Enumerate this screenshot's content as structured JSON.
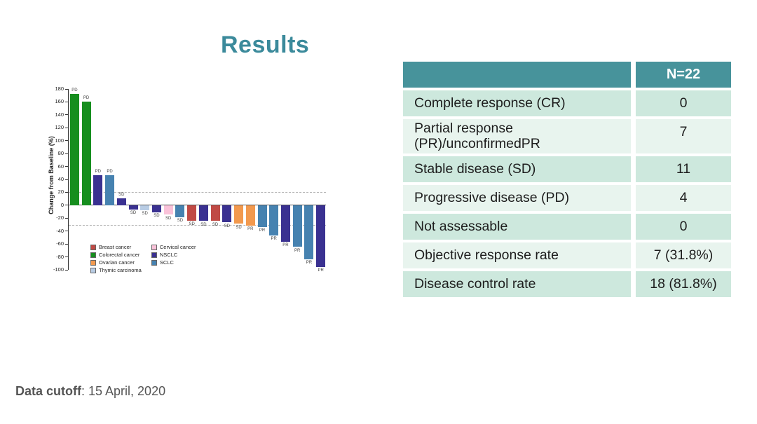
{
  "slide": {
    "title": "Results"
  },
  "footer": {
    "label": "Data cutoff",
    "value": ": 15 April, 2020"
  },
  "table": {
    "header": {
      "label": "",
      "value": "N=22"
    },
    "rows": [
      {
        "label": "Complete response (CR)",
        "value": "0"
      },
      {
        "label": "Partial response (PR)/unconfirmedPR",
        "value": "7"
      },
      {
        "label": "Stable disease (SD)",
        "value": "11"
      },
      {
        "label": "Progressive disease (PD)",
        "value": "4"
      },
      {
        "label": "Not assessable",
        "value": "0"
      },
      {
        "label": "Objective response rate",
        "value": "7 (31.8%)"
      },
      {
        "label": "Disease control rate",
        "value": "18 (81.8%)"
      }
    ],
    "colors": {
      "header": "#47939b",
      "row_dark": "#cde8dd",
      "row_light": "#e8f4ee"
    }
  },
  "chart_data": {
    "type": "bar",
    "title": "",
    "ylabel": "Change from Baseline (%)",
    "ylim": [
      -100,
      180
    ],
    "yticks": [
      180,
      160,
      140,
      120,
      100,
      80,
      60,
      40,
      20,
      0,
      -20,
      -40,
      -60,
      -80,
      -100
    ],
    "reference_lines": [
      20,
      -30
    ],
    "bars": [
      {
        "value": 172,
        "response": "PD",
        "cancer": "Colorectal cancer"
      },
      {
        "value": 161,
        "response": "PD",
        "cancer": "Colorectal cancer"
      },
      {
        "value": 47,
        "response": "PD",
        "cancer": "NSCLC"
      },
      {
        "value": 46,
        "response": "PD",
        "cancer": "SCLC"
      },
      {
        "value": 11,
        "response": "SD",
        "cancer": "NSCLC"
      },
      {
        "value": -6,
        "response": "SD",
        "cancer": "NSCLC"
      },
      {
        "value": -7,
        "response": "SD",
        "cancer": "Thymic carcinoma"
      },
      {
        "value": -10,
        "response": "SD",
        "cancer": "NSCLC"
      },
      {
        "value": -14,
        "response": "SD",
        "cancer": "Cervical cancer"
      },
      {
        "value": -18,
        "response": "SD",
        "cancer": "SCLC"
      },
      {
        "value": -23,
        "response": "SD",
        "cancer": "Breast cancer"
      },
      {
        "value": -24,
        "response": "SD",
        "cancer": "NSCLC"
      },
      {
        "value": -24,
        "response": "SD",
        "cancer": "Breast cancer"
      },
      {
        "value": -26,
        "response": "SD",
        "cancer": "NSCLC"
      },
      {
        "value": -28,
        "response": "SD",
        "cancer": "Ovarian cancer"
      },
      {
        "value": -31,
        "response": "PR",
        "cancer": "Ovarian cancer"
      },
      {
        "value": -33,
        "response": "PR",
        "cancer": "SCLC"
      },
      {
        "value": -46,
        "response": "PR",
        "cancer": "SCLC"
      },
      {
        "value": -56,
        "response": "PR",
        "cancer": "NSCLC"
      },
      {
        "value": -64,
        "response": "PR",
        "cancer": "SCLC"
      },
      {
        "value": -83,
        "response": "PR",
        "cancer": "SCLC"
      },
      {
        "value": -95,
        "response": "PR",
        "cancer": "NSCLC"
      }
    ],
    "legend_columns": [
      [
        "Breast cancer",
        "Colorectal cancer",
        "Ovarian cancer",
        "Thymic carcinoma"
      ],
      [
        "Cervical cancer",
        "NSCLC",
        "SCLC"
      ]
    ],
    "colors": {
      "Breast cancer": "#c04a45",
      "Colorectal cancer": "#168e1e",
      "Ovarian cancer": "#f2994e",
      "Thymic carcinoma": "#b8cce4",
      "Cervical cancer": "#f9c2d9",
      "NSCLC": "#3a3191",
      "SCLC": "#4682b0"
    }
  }
}
